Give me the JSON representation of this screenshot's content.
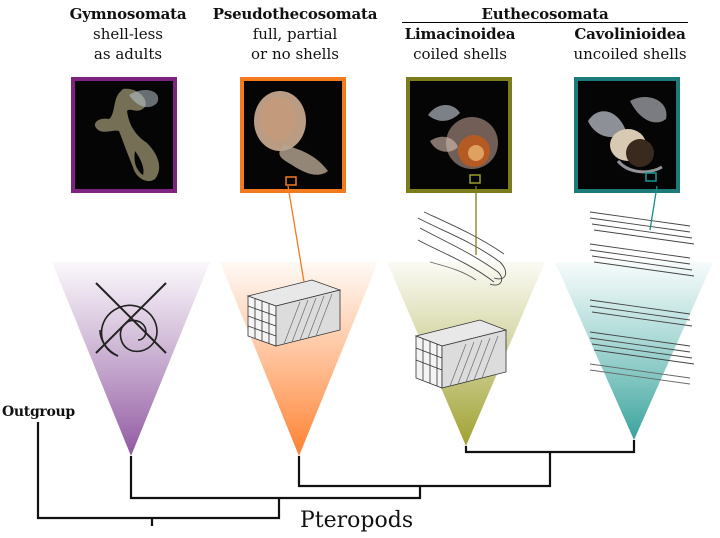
{
  "clades": [
    {
      "name": "Gymnosomata",
      "desc1": "shell-less",
      "desc2": "as adults",
      "color": "#7c2480",
      "shell": "none",
      "photo_subject": "gymnosome"
    },
    {
      "name": "Pseudothecosomata",
      "desc1": "full, partial",
      "desc2": "or no shells",
      "color": "#f47a20",
      "shell": "block",
      "photo_subject": "pseudothecosome"
    },
    {
      "name": "Limacinoidea",
      "desc1": "coiled shells",
      "desc2": "",
      "color": "#7b7d1d",
      "shell": "coiled",
      "photo_subject": "limacinoid"
    },
    {
      "name": "Cavolinioidea",
      "desc1": "uncoiled shells",
      "desc2": "",
      "color": "#1a7b78",
      "shell": "uncoiled",
      "photo_subject": "cavolinioid"
    }
  ],
  "group_header": "Euthecosomata",
  "outgroup_label": "Outgroup",
  "root_label": "Pteropods",
  "colors": {
    "purple": "#9a6aa8",
    "orange": "#ff8a3d",
    "olive": "#a6a83a",
    "teal": "#4fb3ad",
    "line": "#111111"
  }
}
